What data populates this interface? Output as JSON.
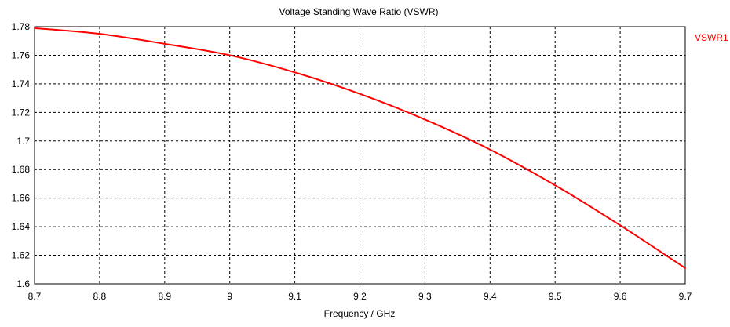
{
  "chart_data": {
    "type": "line",
    "title": "Voltage Standing Wave Ratio (VSWR)",
    "xlabel": "Frequency / GHz",
    "ylabel": "",
    "xlim": [
      8.7,
      9.7
    ],
    "ylim": [
      1.6,
      1.78
    ],
    "xticks": [
      "8.7",
      "8.8",
      "8.9",
      "9",
      "9.1",
      "9.2",
      "9.3",
      "9.4",
      "9.5",
      "9.6",
      "9.7"
    ],
    "yticks": [
      "1.78",
      "1.76",
      "1.74",
      "1.72",
      "1.7",
      "1.68",
      "1.66",
      "1.64",
      "1.62",
      "1.6"
    ],
    "grid": true,
    "legend_position": "right",
    "series": [
      {
        "name": "VSWR1",
        "color": "#ff0000",
        "x": [
          8.7,
          8.8,
          8.9,
          9.0,
          9.1,
          9.2,
          9.3,
          9.4,
          9.5,
          9.6,
          9.7
        ],
        "y": [
          1.779,
          1.775,
          1.768,
          1.76,
          1.748,
          1.733,
          1.715,
          1.694,
          1.669,
          1.641,
          1.611
        ]
      }
    ]
  }
}
